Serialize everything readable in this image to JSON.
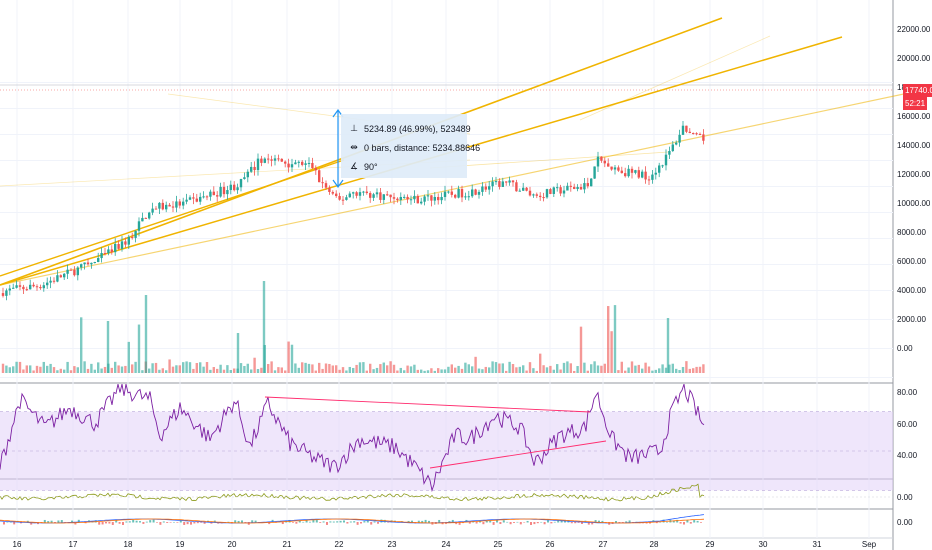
{
  "price_axis": {
    "labels": [
      "22000.00",
      "20000.00",
      "18000.00",
      "16000.00",
      "14000.00",
      "12000.00",
      "10000.00",
      "8000.00",
      "6000.00",
      "4000.00",
      "2000.00",
      "0.00"
    ],
    "current_price": "17740.00",
    "countdown": "52:21",
    "price_color": "#f23645"
  },
  "rsi_axis": {
    "labels": [
      "80.00",
      "60.00",
      "40.00"
    ]
  },
  "osc1_axis": {
    "labels": [
      "0.00"
    ]
  },
  "osc2_axis": {
    "labels": [
      "0.00"
    ]
  },
  "time_axis": {
    "labels": [
      "16",
      "17",
      "18",
      "19",
      "20",
      "21",
      "22",
      "23",
      "24",
      "25",
      "26",
      "27",
      "28",
      "29",
      "30",
      "31",
      "Sep"
    ]
  },
  "measure": {
    "range_text": "5234.89 (46.99%), 523489",
    "bars_text": "0 bars, distance: 5234.88646",
    "angle_text": "90°"
  },
  "colors": {
    "up": "#26a69a",
    "down": "#ef5350",
    "trendline": "#f0b400",
    "rsi_line": "#7b1fa2",
    "rsi_band": "#e1d1f7",
    "osc_line": "#8c9a1a",
    "macd_line": "#2962ff",
    "signal_line": "#ff6d00",
    "measure_arrow": "#2196f3"
  }
}
